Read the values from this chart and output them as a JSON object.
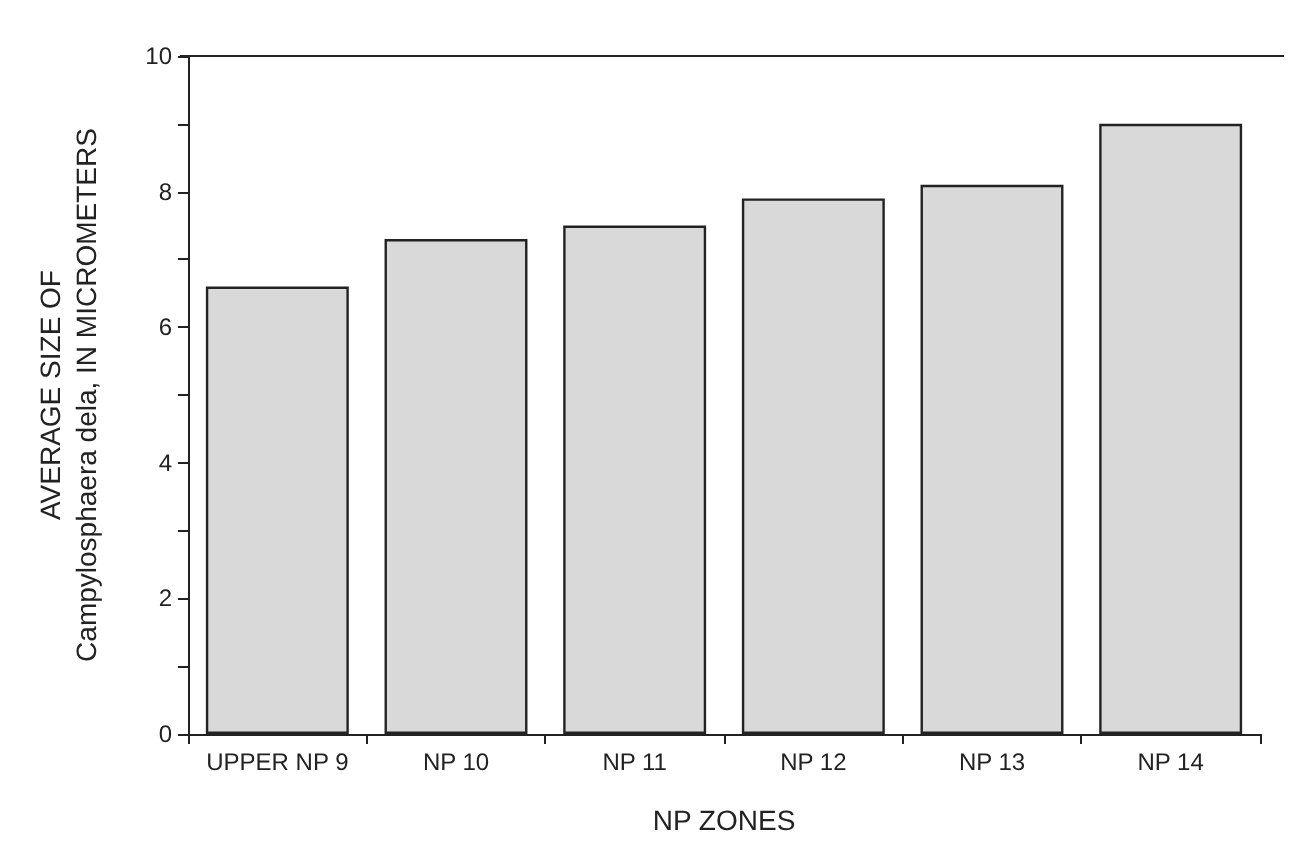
{
  "chart_data": {
    "type": "bar",
    "xlabel": "NP ZONES",
    "ylabel": "AVERAGE SIZE OF\nCampylosphaera dela, IN MICROMETERS",
    "categories": [
      "UPPER NP 9",
      "NP 10",
      "NP 11",
      "NP 12",
      "NP 13",
      "NP 14"
    ],
    "values": [
      6.6,
      7.3,
      7.5,
      7.9,
      8.1,
      9.0
    ],
    "color": "#d9d9d9",
    "ylim": [
      0,
      10
    ],
    "yticks": [
      0,
      {
        "value": 1,
        "label": null
      },
      2,
      {
        "value": 3,
        "label": null
      },
      4,
      {
        "value": 5,
        "label": null
      },
      6,
      {
        "value": 7,
        "label": null
      },
      8,
      {
        "value": 9,
        "label": null
      },
      10
    ],
    "grid": false
  }
}
